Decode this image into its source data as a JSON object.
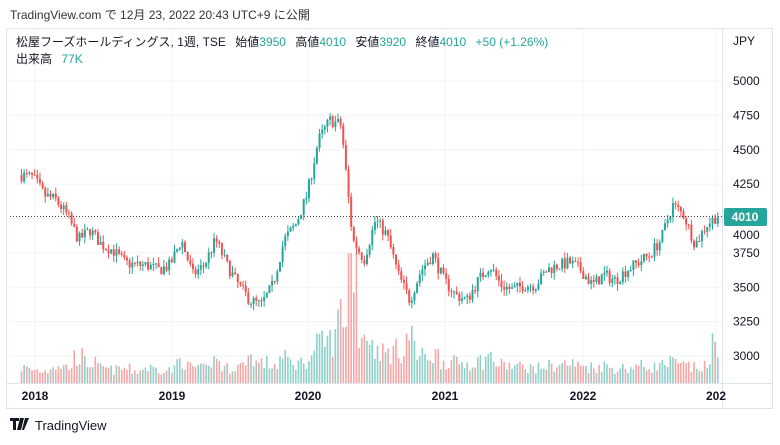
{
  "published": "TradingView.com で 12月 23, 2022 20:43 UTC+9 に公開",
  "legend": {
    "symbol": "松屋フーズホールディングス, 1週, TSE",
    "open_label": "始値",
    "open": "3950",
    "high_label": "高値",
    "high": "4010",
    "low_label": "安値",
    "low": "3920",
    "close_label": "終値",
    "close": "4010",
    "change": "+50 (+1.26%)",
    "volume_label": "出来高",
    "volume": "77K"
  },
  "footer": {
    "brand": "TradingView"
  },
  "colors": {
    "up": "#26a69a",
    "down": "#ef5350",
    "up_vol": "#8fd0c9",
    "down_vol": "#f5a6a4"
  },
  "chart_data": {
    "type": "candlestick",
    "interval": "weekly",
    "currency": "JPY",
    "ylim": [
      2820,
      5250
    ],
    "yticks": [
      3000,
      3250,
      3500,
      3750,
      4000,
      4250,
      4500,
      4750,
      5000
    ],
    "ytick_labels": [
      "3000",
      "3250",
      "3500",
      "3750",
      "4000",
      "4250",
      "4500",
      "4750",
      "5000"
    ],
    "xticks": [
      "2018",
      "2019",
      "2020",
      "2021",
      "2022",
      "202"
    ],
    "last_price": 4010,
    "last_price_label": "4010",
    "monthly_close_start": "2017-10",
    "monthly_close": [
      4315,
      4300,
      4170,
      4135,
      4025,
      3845,
      3915,
      3810,
      3770,
      3680,
      3660,
      3660,
      3625,
      3660,
      3845,
      3590,
      3660,
      3845,
      3660,
      3515,
      3405,
      3370,
      3515,
      3845,
      3955,
      4170,
      4570,
      4715,
      4680,
      3845,
      3700,
      3990,
      3880,
      3590,
      3405,
      3625,
      3735,
      3550,
      3445,
      3405,
      3550,
      3660,
      3515,
      3480,
      3515,
      3515,
      3625,
      3660,
      3680,
      3625,
      3515,
      3590,
      3550,
      3625,
      3680,
      3735,
      3845,
      4100,
      4025,
      3810,
      3955,
      4025,
      4010
    ],
    "monthly_volume_k": [
      150,
      130,
      120,
      180,
      160,
      260,
      200,
      150,
      130,
      140,
      120,
      150,
      140,
      130,
      220,
      160,
      140,
      230,
      150,
      170,
      260,
      200,
      180,
      240,
      200,
      230,
      380,
      420,
      700,
      1300,
      500,
      350,
      300,
      320,
      450,
      260,
      280,
      220,
      200,
      200,
      220,
      260,
      180,
      170,
      160,
      150,
      170,
      180,
      190,
      170,
      160,
      170,
      150,
      150,
      170,
      160,
      180,
      200,
      170,
      150,
      160,
      420,
      77
    ]
  }
}
